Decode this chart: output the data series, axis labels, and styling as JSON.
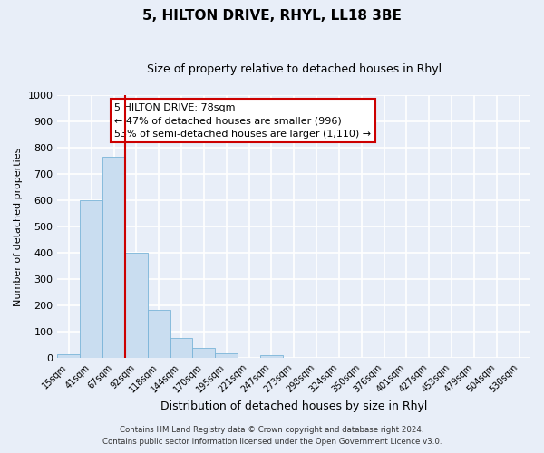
{
  "title": "5, HILTON DRIVE, RHYL, LL18 3BE",
  "subtitle": "Size of property relative to detached houses in Rhyl",
  "xlabel": "Distribution of detached houses by size in Rhyl",
  "ylabel": "Number of detached properties",
  "bar_labels": [
    "15sqm",
    "41sqm",
    "67sqm",
    "92sqm",
    "118sqm",
    "144sqm",
    "170sqm",
    "195sqm",
    "221sqm",
    "247sqm",
    "273sqm",
    "298sqm",
    "324sqm",
    "350sqm",
    "376sqm",
    "401sqm",
    "427sqm",
    "453sqm",
    "479sqm",
    "504sqm",
    "530sqm"
  ],
  "bar_values": [
    15,
    600,
    765,
    400,
    185,
    78,
    40,
    18,
    0,
    13,
    0,
    0,
    0,
    0,
    0,
    0,
    0,
    0,
    0,
    0,
    0
  ],
  "bar_color": "#c9ddf0",
  "bar_edgecolor": "#7ab4d8",
  "vline_x_index": 2.5,
  "vline_color": "#cc0000",
  "ylim": [
    0,
    1000
  ],
  "yticks": [
    0,
    100,
    200,
    300,
    400,
    500,
    600,
    700,
    800,
    900,
    1000
  ],
  "annotation_box_text": "5 HILTON DRIVE: 78sqm\n← 47% of detached houses are smaller (996)\n53% of semi-detached houses are larger (1,110) →",
  "annotation_box_facecolor": "#ffffff",
  "annotation_box_edgecolor": "#cc0000",
  "footer_line1": "Contains HM Land Registry data © Crown copyright and database right 2024.",
  "footer_line2": "Contains public sector information licensed under the Open Government Licence v3.0.",
  "background_color": "#e8eef8",
  "plot_bg_color": "#e8eef8",
  "grid_color": "#ffffff",
  "title_fontsize": 11,
  "subtitle_fontsize": 9,
  "ylabel_fontsize": 8,
  "xlabel_fontsize": 9
}
